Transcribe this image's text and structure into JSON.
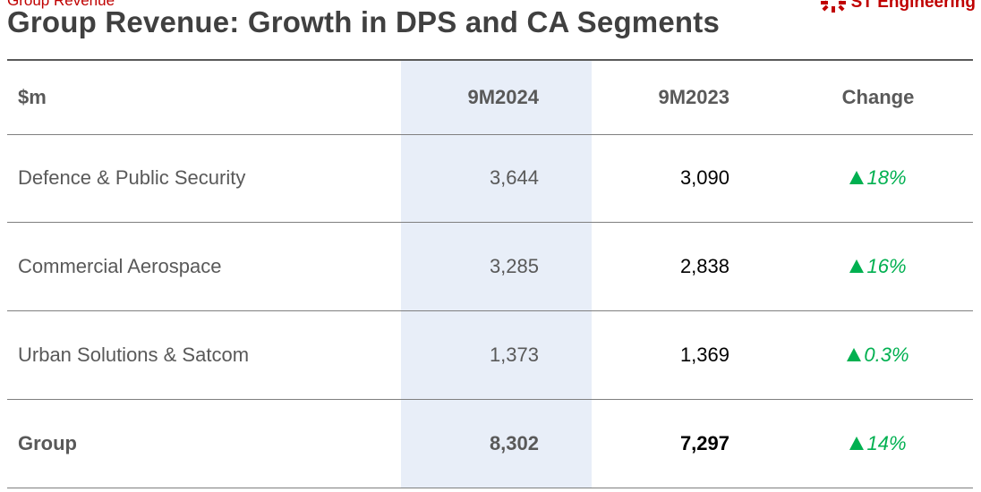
{
  "header": {
    "section_label": "Group Revenue",
    "title": "Group Revenue: Growth in DPS and CA Segments",
    "logo_text": "ST Engineering",
    "logo_icon": "st-engineering-logo-icon"
  },
  "colors": {
    "title": "#404040",
    "section_label": "#c00000",
    "highlight_column": "#e8eef8",
    "increase": "#00b050",
    "rule": "#595959"
  },
  "table": {
    "columns": [
      "$m",
      "9M2024",
      "9M2023",
      "Change"
    ],
    "rows": [
      {
        "label": "Defence & Public Security",
        "y2024": "3,644",
        "y2023": "3,090",
        "change": "18%",
        "direction_icon": "triangle-up-icon"
      },
      {
        "label": "Commercial Aerospace",
        "y2024": "3,285",
        "y2023": "2,838",
        "change": "16%",
        "direction_icon": "triangle-up-icon"
      },
      {
        "label": "Urban Solutions & Satcom",
        "y2024": "1,373",
        "y2023": "1,369",
        "change": "0.3%",
        "direction_icon": "triangle-up-icon"
      },
      {
        "label": "Group",
        "y2024": "8,302",
        "y2023": "7,297",
        "change": "14%",
        "direction_icon": "triangle-up-icon"
      }
    ]
  }
}
